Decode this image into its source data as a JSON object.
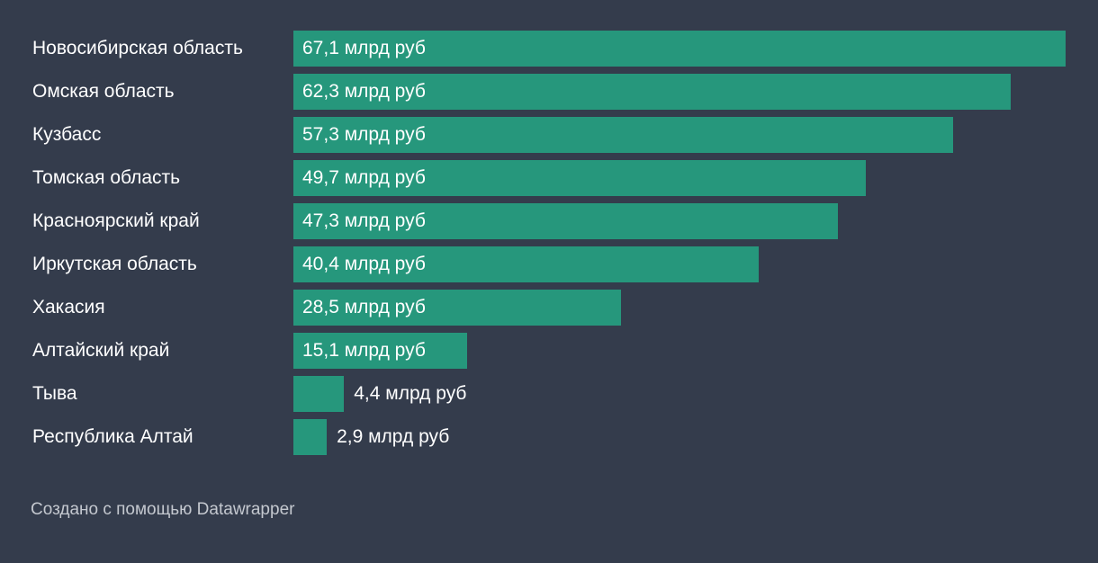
{
  "chart_data": {
    "type": "bar",
    "orientation": "horizontal",
    "title": "",
    "xlabel": "",
    "ylabel": "",
    "unit_suffix": " млрд руб",
    "categories": [
      "Новосибирская область",
      "Омская область",
      "Кузбасс",
      "Томская область",
      "Красноярский край",
      "Иркутская область",
      "Хакасия",
      "Алтайский край",
      "Тыва",
      "Республика Алтай"
    ],
    "values": [
      67.1,
      62.3,
      57.3,
      49.7,
      47.3,
      40.4,
      28.5,
      15.1,
      4.4,
      2.9
    ],
    "labels": [
      "67,1 млрд руб",
      "62,3 млрд руб",
      "57,3 млрд руб",
      "49,7 млрд руб",
      "47,3 млрд руб",
      "40,4 млрд руб",
      "28,5 млрд руб",
      "15,1 млрд руб",
      "4,4 млрд руб",
      "2,9 млрд руб"
    ],
    "xlim": [
      0,
      67.1
    ],
    "grid": false,
    "bar_color": "#26977c",
    "background": "#343c4c"
  },
  "footer": "Создано с помощью Datawrapper"
}
